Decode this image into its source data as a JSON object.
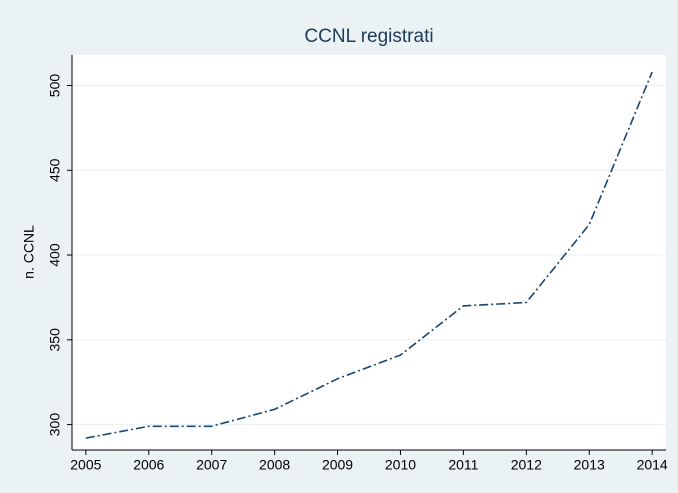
{
  "chart_data": {
    "type": "line",
    "title": "CCNL registrati",
    "y_label": "n. CCNL",
    "x": [
      2005,
      2006,
      2007,
      2008,
      2009,
      2010,
      2011,
      2012,
      2013,
      2014
    ],
    "series": [
      {
        "name": "CCNL",
        "color": "#1a476f",
        "values": [
          292,
          299,
          299,
          309,
          327,
          341,
          370,
          372,
          418,
          508
        ]
      }
    ],
    "xlim": [
      2004.78,
      2014.22
    ],
    "xticks": [
      2005,
      2006,
      2007,
      2008,
      2009,
      2010,
      2011,
      2012,
      2013,
      2014
    ],
    "ylim": [
      285,
      518
    ],
    "yticks": [
      300,
      350,
      400,
      450,
      500
    ],
    "grid": true
  }
}
